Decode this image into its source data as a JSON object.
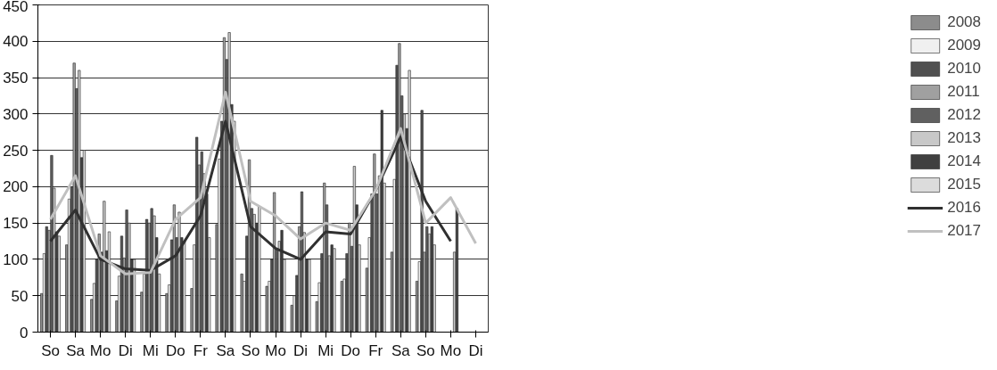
{
  "chart_data": {
    "type": "bar",
    "categories": [
      "So",
      "Sa",
      "Mo",
      "Di",
      "Mi",
      "Do",
      "Fr",
      "Sa",
      "So",
      "Mo",
      "Di",
      "Mi",
      "Do",
      "Fr",
      "Sa",
      "So",
      "Mo",
      "Di"
    ],
    "ylim": [
      0,
      450
    ],
    "yticks": [
      0,
      50,
      100,
      150,
      200,
      250,
      300,
      350,
      400,
      450
    ],
    "grid": "y",
    "legend": "right",
    "series": [
      {
        "name": "2008",
        "color": "#8c8c8c",
        "values": [
          53,
          120,
          45,
          43,
          55,
          53,
          60,
          148,
          80,
          63,
          37,
          42,
          70,
          88,
          110,
          70,
          null,
          null
        ]
      },
      {
        "name": "2009",
        "color": "#f0f0f0",
        "values": [
          108,
          183,
          67,
          77,
          80,
          65,
          120,
          238,
          70,
          70,
          50,
          68,
          73,
          130,
          210,
          97,
          null,
          null
        ]
      },
      {
        "name": "2010",
        "color": "#505050",
        "values": [
          145,
          200,
          100,
          132,
          155,
          127,
          268,
          290,
          132,
          100,
          78,
          108,
          108,
          190,
          367,
          305,
          null,
          null
        ]
      },
      {
        "name": "2011",
        "color": "#a0a0a0",
        "values": [
          140,
          370,
          135,
          102,
          150,
          175,
          230,
          405,
          237,
          192,
          145,
          205,
          150,
          245,
          397,
          110,
          null,
          null
        ]
      },
      {
        "name": "2012",
        "color": "#606060",
        "values": [
          243,
          335,
          110,
          168,
          170,
          130,
          248,
          375,
          170,
          115,
          193,
          175,
          118,
          190,
          325,
          145,
          null,
          null
        ]
      },
      {
        "name": "2013",
        "color": "#c8c8c8",
        "values": [
          198,
          360,
          180,
          150,
          160,
          165,
          218,
          412,
          162,
          125,
          137,
          105,
          228,
          215,
          300,
          135,
          110,
          null
        ]
      },
      {
        "name": "2014",
        "color": "#404040",
        "values": [
          138,
          240,
          112,
          100,
          130,
          130,
          190,
          313,
          150,
          140,
          100,
          120,
          175,
          305,
          280,
          145,
          170,
          null
        ]
      },
      {
        "name": "2015",
        "color": "#dcdcdc",
        "values": [
          132,
          250,
          138,
          100,
          80,
          125,
          130,
          290,
          172,
          100,
          100,
          115,
          120,
          205,
          360,
          120,
          null,
          null
        ]
      },
      {
        "name": "2016",
        "color": "#303030",
        "type": "line",
        "values": [
          125,
          168,
          100,
          87,
          85,
          105,
          160,
          290,
          145,
          115,
          100,
          138,
          135,
          195,
          268,
          180,
          125,
          null
        ]
      },
      {
        "name": "2017",
        "color": "#c0c0c0",
        "type": "line",
        "values": [
          155,
          215,
          105,
          80,
          82,
          155,
          185,
          330,
          180,
          160,
          128,
          150,
          140,
          195,
          280,
          150,
          185,
          122
        ]
      }
    ]
  }
}
